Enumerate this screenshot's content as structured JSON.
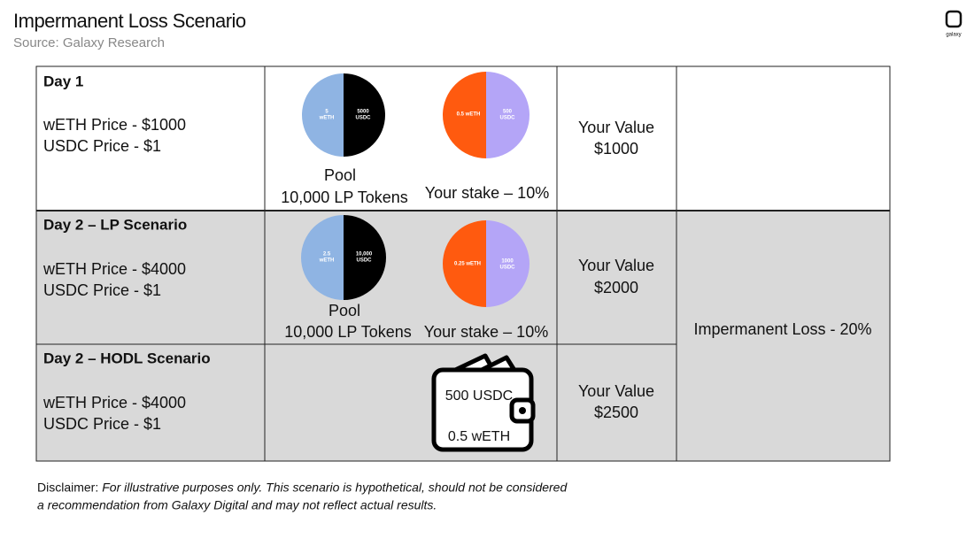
{
  "header": {
    "title": "Impermanent Loss Scenario",
    "source": "Source: Galaxy Research",
    "logo": "galaxy"
  },
  "rows": [
    {
      "label": "Day 1",
      "weth_price": "wETH Price - $1000",
      "usdc_price": "USDC Price - $1",
      "pool": {
        "left": [
          "5",
          "wETH"
        ],
        "right": [
          "5000",
          "USDC"
        ],
        "caption": "Pool",
        "tokens": "10,000 LP Tokens"
      },
      "stake": {
        "left": "0.5 wETH",
        "right": [
          "500",
          "USDC"
        ],
        "caption": "Your stake – 10%"
      },
      "value": [
        "Your Value",
        "$1000"
      ]
    },
    {
      "label": "Day 2 – LP Scenario",
      "weth_price": "wETH Price - $4000",
      "usdc_price": "USDC Price - $1",
      "pool": {
        "left": [
          "2.5",
          "wETH"
        ],
        "right": [
          "10,000",
          "USDC"
        ],
        "caption": "Pool",
        "tokens": "10,000 LP Tokens"
      },
      "stake": {
        "left": "0.25 wETH",
        "right": [
          "1000",
          "USDC"
        ],
        "caption": "Your stake – 10%"
      },
      "value": [
        "Your Value",
        "$2000"
      ]
    },
    {
      "label": "Day 2 – HODL Scenario",
      "weth_price": "wETH Price - $4000",
      "usdc_price": "USDC Price - $1",
      "wallet": [
        "500 USDC",
        "0.5 wETH"
      ],
      "value": [
        "Your Value",
        "$2500"
      ]
    }
  ],
  "impermanent_loss": "Impermanent Loss - 20%",
  "disclaimer": {
    "label": "Disclaimer:",
    "text": [
      "For illustrative purposes only. This scenario is hypothetical, should not be considered",
      "a recommendation from Galaxy Digital and may not reflect actual results."
    ]
  }
}
